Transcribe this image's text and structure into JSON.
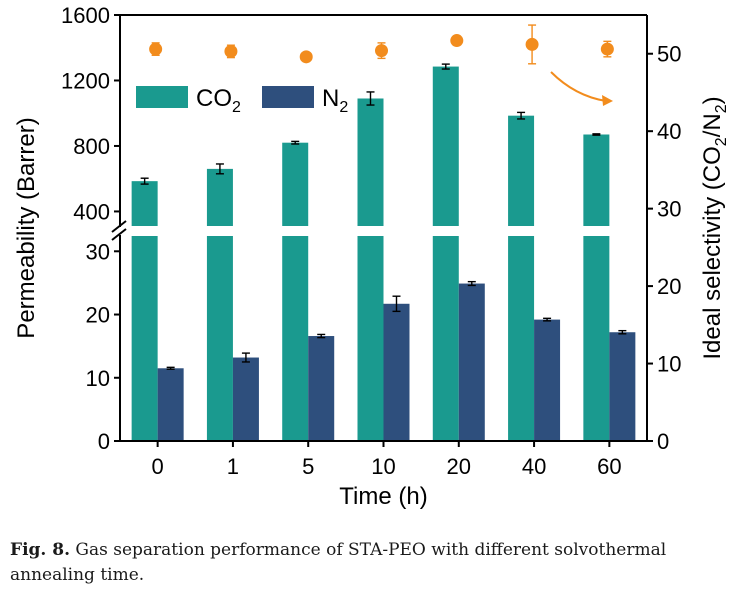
{
  "chart_data": {
    "type": "bar",
    "categories": [
      "0",
      "1",
      "5",
      "10",
      "20",
      "40",
      "60"
    ],
    "xlabel": "Time (h)",
    "ylabel": "Permeability (Barrer)",
    "ylabel_right_prefix": "Ideal selectivity (CO",
    "ylabel_right_sub1": "2",
    "ylabel_right_mid": "/N",
    "ylabel_right_sub2": "2",
    "ylabel_right_suffix": ")",
    "y_axis_broken": true,
    "ylim_lower": [
      0,
      34
    ],
    "ylim_upper": [
      250,
      1600
    ],
    "y_ticks_lower": [
      "0",
      "10",
      "20",
      "30"
    ],
    "y_ticks_upper": [
      "400",
      "800",
      "1200",
      "1600"
    ],
    "y2lim": [
      0,
      55
    ],
    "y2_ticks": [
      "0",
      "10",
      "20",
      "30",
      "40",
      "50"
    ],
    "series": [
      {
        "name_main": "CO",
        "name_sub": "2",
        "kind": "bar",
        "color": "#1a9a8f",
        "values": [
          585,
          660,
          820,
          1090,
          1285,
          985,
          870
        ],
        "errors": [
          18,
          30,
          8,
          40,
          15,
          20,
          4
        ]
      },
      {
        "name_main": "N",
        "name_sub": "2",
        "kind": "bar",
        "color": "#2e4f7d",
        "values": [
          11.5,
          13.2,
          16.6,
          21.7,
          24.9,
          19.2,
          17.2
        ],
        "errors": [
          0.15,
          0.7,
          0.25,
          1.2,
          0.3,
          0.2,
          0.25
        ]
      },
      {
        "kind": "scatter",
        "axis": "right",
        "color": "#f28c1d",
        "values": [
          50.6,
          50.3,
          49.6,
          50.4,
          51.7,
          51.2,
          50.6
        ],
        "errors": [
          0.8,
          0.8,
          0.5,
          1.0,
          0.3,
          2.5,
          1.0
        ]
      }
    ],
    "legend_position": "top-left",
    "annotation": "arrow toward right axis"
  },
  "caption": {
    "label": "Fig. 8.",
    "text": " Gas separation performance of STA-PEO with different solvothermal annealing time."
  }
}
